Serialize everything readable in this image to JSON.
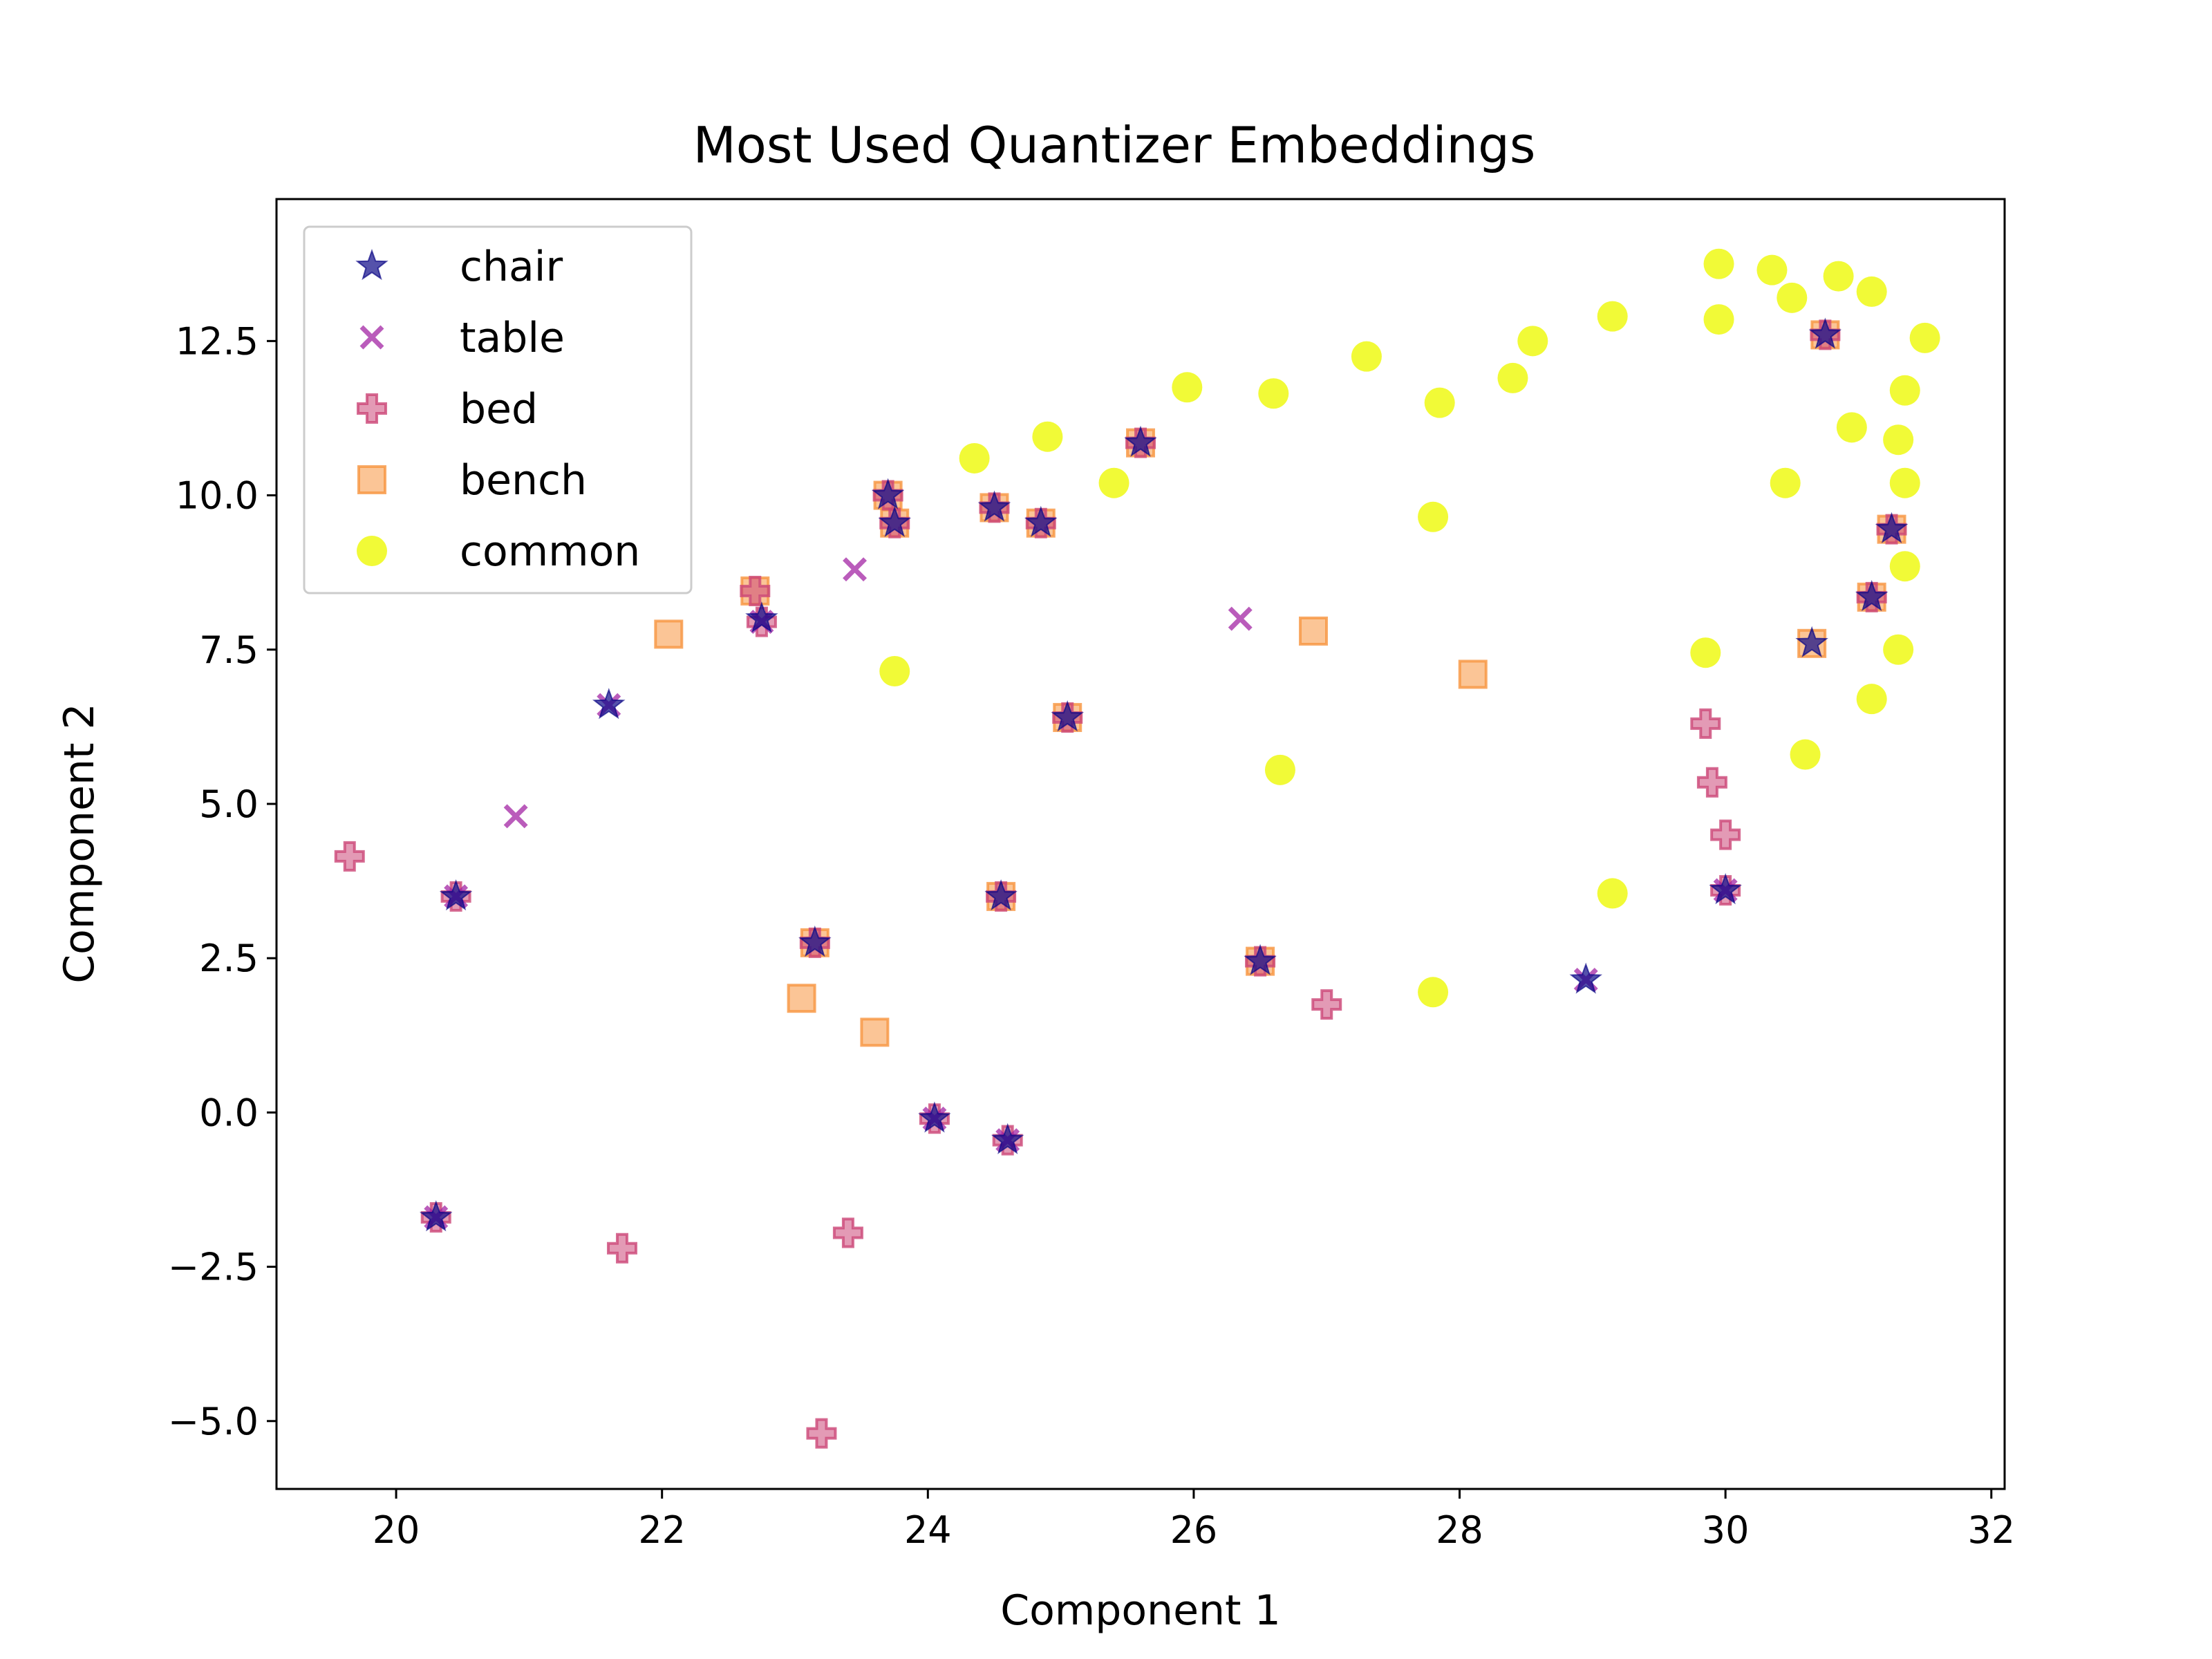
{
  "chart_data": {
    "type": "scatter",
    "title": "Most Used Quantizer Embeddings",
    "xlabel": "Component 1",
    "ylabel": "Component 2",
    "xlim": [
      19.1,
      32.1
    ],
    "ylim": [
      -6.1,
      14.8
    ],
    "xticks": [
      20,
      22,
      24,
      26,
      28,
      30,
      32
    ],
    "yticks": [
      -5.0,
      -2.5,
      0.0,
      2.5,
      5.0,
      7.5,
      10.0,
      12.5
    ],
    "xtick_labels": [
      "20",
      "22",
      "24",
      "26",
      "28",
      "30",
      "32"
    ],
    "ytick_labels": [
      "−5.0",
      "−2.5",
      "0.0",
      "2.5",
      "5.0",
      "7.5",
      "10.0",
      "12.5"
    ],
    "grid": false,
    "legend_position": "top-left",
    "series": [
      {
        "name": "chair",
        "marker": "star",
        "color": "#0d0887",
        "points": [
          [
            20.3,
            -1.7
          ],
          [
            20.45,
            3.5
          ],
          [
            21.6,
            6.6
          ],
          [
            22.75,
            8.0
          ],
          [
            23.15,
            2.75
          ],
          [
            23.7,
            10.0
          ],
          [
            23.75,
            9.55
          ],
          [
            24.05,
            -0.1
          ],
          [
            24.5,
            9.8
          ],
          [
            24.55,
            3.5
          ],
          [
            24.6,
            -0.45
          ],
          [
            24.85,
            9.55
          ],
          [
            25.05,
            6.4
          ],
          [
            25.6,
            10.85
          ],
          [
            26.5,
            2.45
          ],
          [
            28.95,
            2.15
          ],
          [
            30.0,
            3.6
          ],
          [
            30.65,
            7.6
          ],
          [
            30.75,
            12.6
          ],
          [
            31.1,
            8.35
          ],
          [
            31.25,
            9.45
          ]
        ]
      },
      {
        "name": "table",
        "marker": "x",
        "color": "#9c179e",
        "points": [
          [
            20.3,
            -1.7
          ],
          [
            20.45,
            3.5
          ],
          [
            20.9,
            4.8
          ],
          [
            21.6,
            6.6
          ],
          [
            22.75,
            7.95
          ],
          [
            23.45,
            8.8
          ],
          [
            24.05,
            -0.1
          ],
          [
            24.6,
            -0.45
          ],
          [
            26.35,
            8.0
          ],
          [
            28.95,
            2.15
          ],
          [
            30.0,
            3.6
          ]
        ]
      },
      {
        "name": "bed",
        "marker": "plus",
        "color": "#cc4778",
        "points": [
          [
            19.65,
            4.15
          ],
          [
            20.3,
            -1.7
          ],
          [
            20.45,
            3.5
          ],
          [
            21.7,
            -2.2
          ],
          [
            22.7,
            8.45
          ],
          [
            22.75,
            7.95
          ],
          [
            23.15,
            2.75
          ],
          [
            23.2,
            -5.2
          ],
          [
            23.4,
            -1.95
          ],
          [
            23.7,
            10.0
          ],
          [
            23.75,
            9.55
          ],
          [
            24.05,
            -0.1
          ],
          [
            24.5,
            9.8
          ],
          [
            24.55,
            3.5
          ],
          [
            24.6,
            -0.45
          ],
          [
            24.85,
            9.55
          ],
          [
            25.05,
            6.4
          ],
          [
            25.6,
            10.85
          ],
          [
            26.5,
            2.45
          ],
          [
            27.0,
            1.75
          ],
          [
            29.85,
            6.3
          ],
          [
            29.9,
            5.35
          ],
          [
            30.0,
            4.5
          ],
          [
            30.0,
            3.6
          ],
          [
            30.75,
            12.6
          ],
          [
            31.1,
            8.35
          ],
          [
            31.25,
            9.45
          ]
        ]
      },
      {
        "name": "bench",
        "marker": "square",
        "color": "#f89540",
        "points": [
          [
            22.05,
            7.75
          ],
          [
            22.7,
            8.45
          ],
          [
            23.05,
            1.85
          ],
          [
            23.15,
            2.75
          ],
          [
            23.6,
            1.3
          ],
          [
            23.7,
            10.0
          ],
          [
            23.75,
            9.55
          ],
          [
            24.5,
            9.8
          ],
          [
            24.55,
            3.5
          ],
          [
            24.85,
            9.55
          ],
          [
            25.05,
            6.4
          ],
          [
            25.6,
            10.85
          ],
          [
            26.5,
            2.45
          ],
          [
            26.9,
            7.8
          ],
          [
            28.1,
            7.1
          ],
          [
            30.65,
            7.6
          ],
          [
            30.75,
            12.6
          ],
          [
            31.1,
            8.35
          ],
          [
            31.25,
            9.45
          ]
        ]
      },
      {
        "name": "common",
        "marker": "circle",
        "color": "#f0f921",
        "points": [
          [
            23.75,
            7.15
          ],
          [
            24.35,
            10.6
          ],
          [
            24.9,
            10.95
          ],
          [
            25.4,
            10.2
          ],
          [
            25.95,
            11.75
          ],
          [
            26.6,
            11.65
          ],
          [
            26.65,
            5.55
          ],
          [
            27.3,
            12.25
          ],
          [
            27.8,
            9.65
          ],
          [
            27.85,
            11.5
          ],
          [
            27.8,
            1.95
          ],
          [
            28.4,
            11.9
          ],
          [
            28.55,
            12.5
          ],
          [
            29.15,
            12.9
          ],
          [
            29.15,
            3.55
          ],
          [
            29.85,
            7.45
          ],
          [
            29.95,
            13.75
          ],
          [
            29.95,
            12.85
          ],
          [
            30.35,
            13.65
          ],
          [
            30.45,
            10.2
          ],
          [
            30.5,
            13.2
          ],
          [
            30.6,
            5.8
          ],
          [
            30.85,
            13.55
          ],
          [
            30.95,
            11.1
          ],
          [
            31.1,
            13.3
          ],
          [
            31.1,
            6.7
          ],
          [
            31.3,
            10.9
          ],
          [
            31.3,
            7.5
          ],
          [
            31.35,
            11.7
          ],
          [
            31.35,
            10.2
          ],
          [
            31.35,
            8.85
          ],
          [
            31.5,
            12.55
          ]
        ]
      }
    ]
  }
}
